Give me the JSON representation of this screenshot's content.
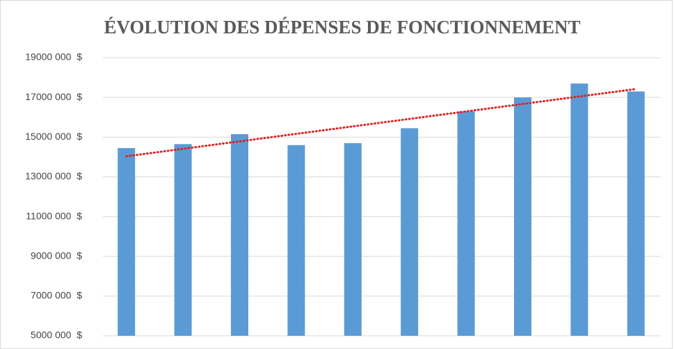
{
  "chart_data": {
    "type": "bar",
    "title": "ÉVOLUTION DES DÉPENSES DE FONCTIONNEMENT",
    "categories": [
      null,
      null,
      null,
      null,
      null,
      null,
      null,
      null,
      null,
      null
    ],
    "values": [
      14450000,
      14650000,
      15150000,
      14600000,
      14700000,
      15450000,
      16300000,
      17000000,
      17700000,
      17300000
    ],
    "color": "#5b9bd5",
    "ylim": [
      5000000,
      19000000
    ],
    "yticks": [
      {
        "value": 5000000,
        "label": "5000 000  $"
      },
      {
        "value": 7000000,
        "label": "7000 000  $"
      },
      {
        "value": 9000000,
        "label": "9000 000  $"
      },
      {
        "value": 11000000,
        "label": "11000 000  $"
      },
      {
        "value": 13000000,
        "label": "13000 000  $"
      },
      {
        "value": 15000000,
        "label": "15000 000  $"
      },
      {
        "value": 17000000,
        "label": "17000 000  $"
      },
      {
        "value": 19000000,
        "label": "19000 000  $"
      }
    ],
    "grid": true,
    "trendline": "linear",
    "trendline_color": "#e02020"
  }
}
